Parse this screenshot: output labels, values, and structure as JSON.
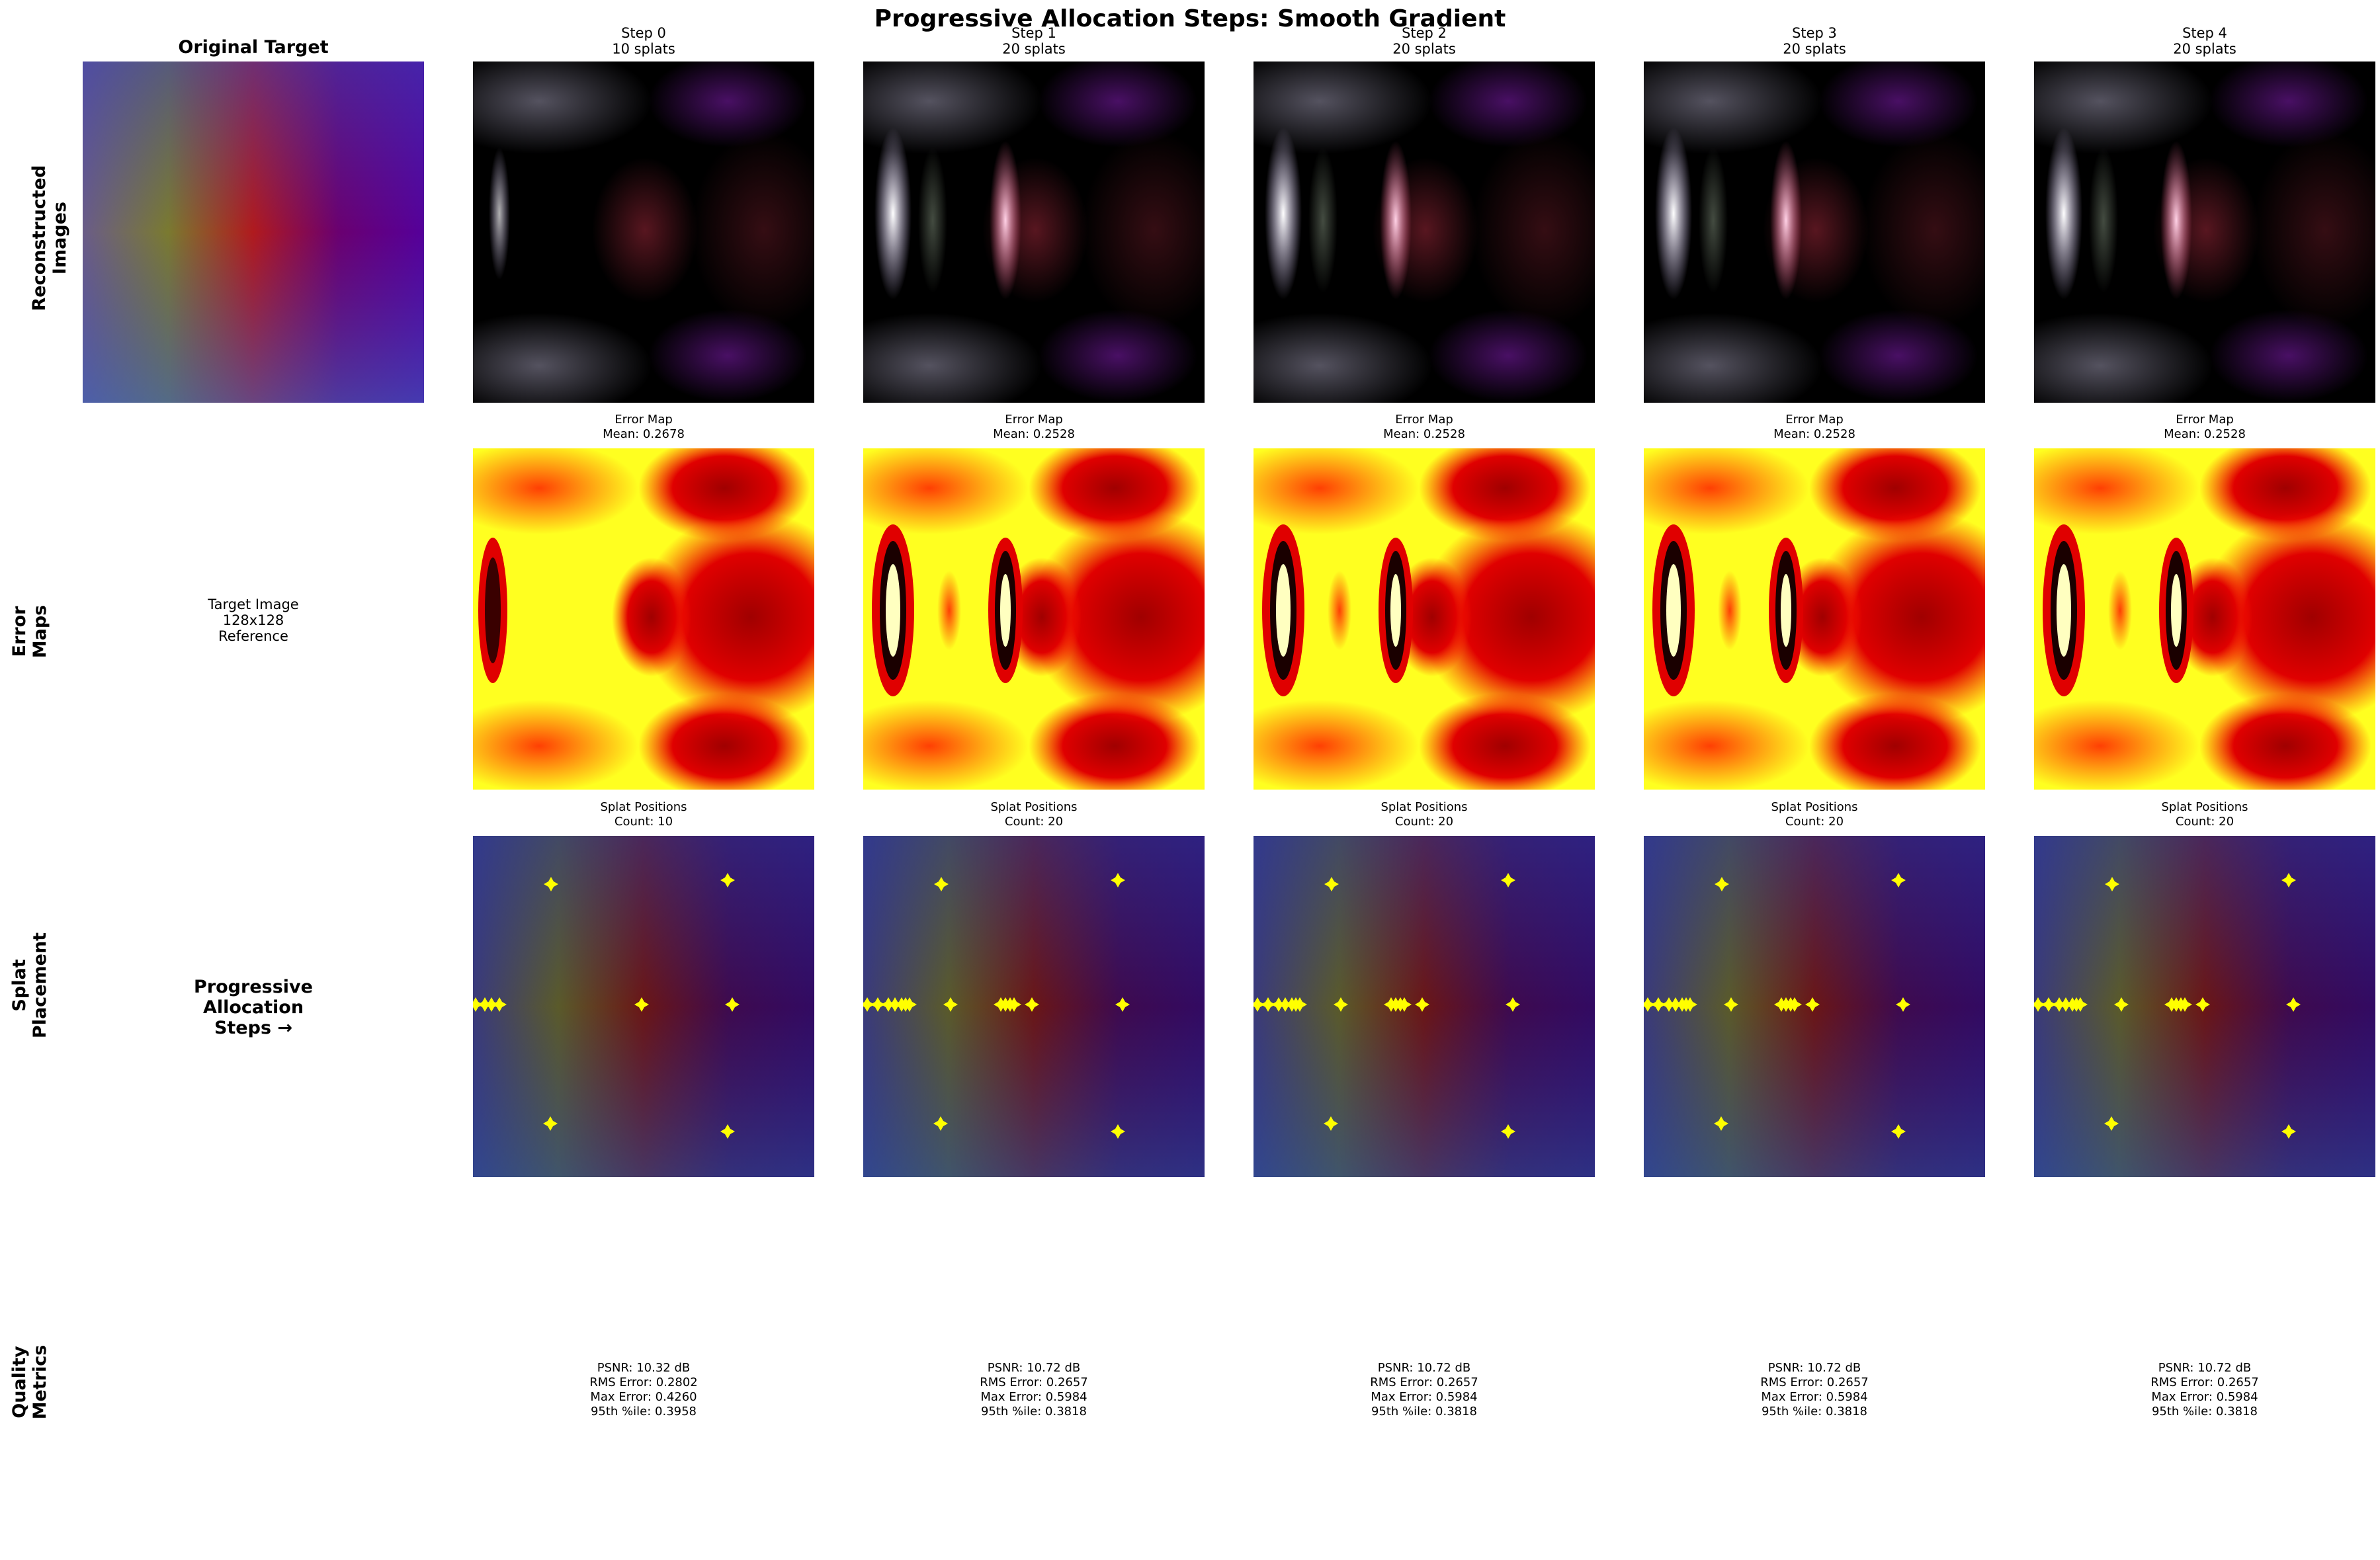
{
  "figure": {
    "title": "Progressive Allocation Steps: Smooth Gradient",
    "row_labels": [
      "Reconstructed\nImages",
      "Error\nMaps",
      "Splat\nPlacement",
      "Quality\nMetrics"
    ],
    "original": {
      "title": "Original Target",
      "info": "Target Image\n128x128\nReference",
      "progressive_label": "Progressive\nAllocation\nSteps →"
    },
    "error_map_label": "Error Map",
    "splat_positions_label": "Splat Positions",
    "steps": [
      {
        "header": "Step 0\n10 splats",
        "mean_error": "Mean: 0.2678",
        "count": "Count: 10",
        "metrics": "PSNR: 10.32 dB\nRMS Error: 0.2802\nMax Error: 0.4260\n95th %ile: 0.3958",
        "error_texts": [
          "Error Map\nMean: 0.2678"
        ],
        "splat_text": "Splat Positions\nCount: 10"
      },
      {
        "header": "Step 1\n20 splats",
        "mean_error": "Mean: 0.2528",
        "count": "Count: 20",
        "metrics": "PSNR: 10.72 dB\nRMS Error: 0.2657\nMax Error: 0.5984\n95th %ile: 0.3818",
        "splat_text": "Splat Positions\nCount: 20"
      },
      {
        "header": "Step 2\n20 splats",
        "mean_error": "Mean: 0.2528",
        "count": "Count: 20",
        "metrics": "PSNR: 10.72 dB\nRMS Error: 0.2657\nMax Error: 0.5984\n95th %ile: 0.3818",
        "splat_text": "Splat Positions\nCount: 20"
      },
      {
        "header": "Step 3\n20 splats",
        "mean_error": "Mean: 0.2528",
        "count": "Count: 20",
        "metrics": "PSNR: 10.72 dB\nRMS Error: 0.2657\nMax Error: 0.5984\n95th %ile: 0.3818",
        "splat_text": "Splat Positions\nCount: 20"
      },
      {
        "header": "Step 4\n20 splats",
        "mean_error": "Mean: 0.2528",
        "count": "Count: 20",
        "metrics": "PSNR: 10.72 dB\nRMS Error: 0.2657\nMax Error: 0.5984\n95th %ile: 0.3818",
        "splat_text": "Splat Positions\nCount: 20"
      }
    ],
    "error_titles": [
      "Error Map\nMean: 0.2678",
      "Error Map\nMean: 0.2528",
      "Error Map\nMean: 0.2528",
      "Error Map\nMean: 0.2528",
      "Error Map\nMean: 0.2528"
    ],
    "colors": {
      "marker": "#ffff00",
      "error_hot": "#ffff00",
      "error_mid": "#dd0000",
      "error_low": "#7a0000",
      "target_purple": "#5a0f96",
      "target_olive": "#7a7a28",
      "target_red": "#b4141e"
    }
  }
}
